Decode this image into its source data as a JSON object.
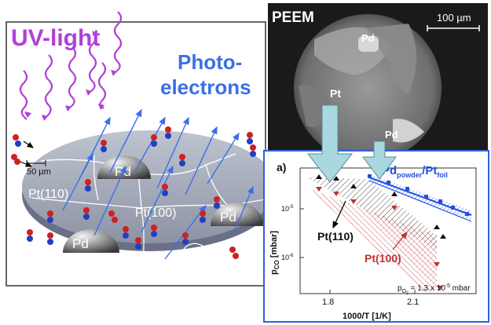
{
  "left_panel": {
    "uv_light": "UV-light",
    "photo_line1": "Photo-",
    "photo_line2": "electrons",
    "scale_bar": "50 µm",
    "pt110": "Pt(110)",
    "pt100": "Pt(100)",
    "pd_label": "Pd",
    "molecule_o": "O",
    "molecule_c": "C"
  },
  "peem_panel": {
    "title": "PEEM",
    "scale_bar": "100 µm",
    "pd_top": "Pd",
    "pt": "Pt",
    "pd_bottom": "Pd"
  },
  "plot_panel": {
    "panel_letter": "a)",
    "legend_pd": "Pd",
    "legend_pd_sub": "powder",
    "legend_sep": "/Pt",
    "legend_pt_sub": "foil",
    "label_pt110": "Pt(110)",
    "label_pt100": "Pt(100)",
    "condition_main": "p",
    "condition_sub": "O",
    "condition_sub2": "2",
    "condition_value": " = 1.3 x 10",
    "condition_exp": "-5",
    "condition_unit": " mbar",
    "ylabel_main": "p",
    "ylabel_sub": "CO",
    "ylabel_unit": " [mbar]",
    "xlabel": "1000/T [1/K]",
    "x_ticks": [
      "1.8",
      "2.1"
    ],
    "y_ticks": [
      {
        "base": "10",
        "exp": "-5"
      },
      {
        "base": "10",
        "exp": "-6"
      }
    ]
  },
  "colors": {
    "uv": "#b040d8",
    "photoelectron": "#3a6fe8",
    "plot_border": "#3060e0",
    "arrow_fill": "#a9d8e0",
    "pt100_series": "#c03030",
    "pd_series": "#2050e0"
  }
}
